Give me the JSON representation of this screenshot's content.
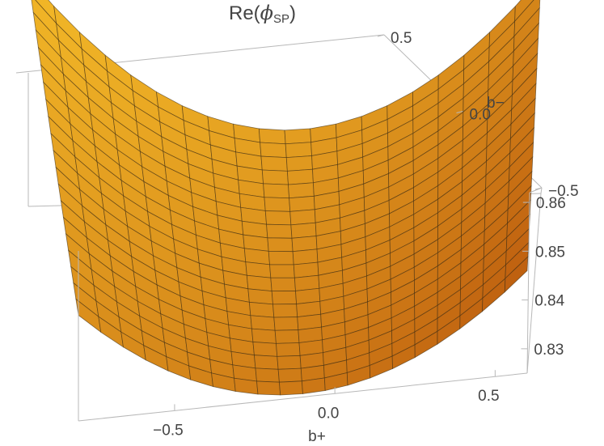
{
  "chart_data": {
    "type": "surface3d",
    "title": {
      "prefix": "Re(",
      "symbol": "ϕ",
      "subscript": "SP",
      "suffix": ")"
    },
    "xlabel": "b+",
    "ylabel": "b−",
    "x_range": [
      -0.8,
      0.6
    ],
    "y_range": [
      -0.5,
      0.5
    ],
    "z_range": [
      0.825,
      0.862
    ],
    "x_ticks": [
      {
        "value": -0.5,
        "label": "−0.5"
      },
      {
        "value": 0.0,
        "label": "0.0"
      },
      {
        "value": 0.5,
        "label": "0.5"
      }
    ],
    "y_ticks": [
      {
        "value": 0.5,
        "label": "0.5"
      },
      {
        "value": 0.0,
        "label": "0.0"
      },
      {
        "value": -0.5,
        "label": "−0.5"
      }
    ],
    "z_ticks": [
      {
        "value": 0.86,
        "label": "0.86"
      },
      {
        "value": 0.85,
        "label": "0.85"
      },
      {
        "value": 0.84,
        "label": "0.84"
      },
      {
        "value": 0.83,
        "label": "0.83"
      }
    ],
    "surface": {
      "description": "bowl-shaped surface with minimum near b+ = -0.05",
      "grid_lines": 20,
      "corner_values": {
        "bplus_min_bminus_max": 0.866,
        "bplus_max_bminus_max": 0.858,
        "bplus_min_bminus_min": 0.843,
        "bplus_max_bminus_min": 0.848
      },
      "minimum": 0.826
    },
    "colors": {
      "surface_light": "#ffc629",
      "surface_mid": "#f59a22",
      "surface_dark": "#a5560c",
      "mesh": "#3a2a10",
      "box": "#b8b8b8"
    }
  }
}
